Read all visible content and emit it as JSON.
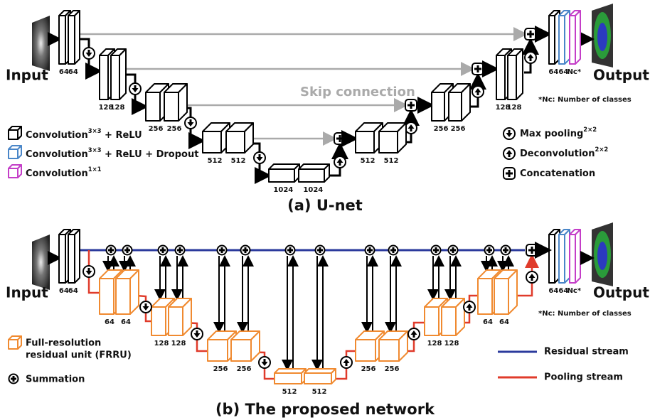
{
  "unet": {
    "input": "Input",
    "output": "Output",
    "channels": [
      "64",
      "64",
      "128",
      "128",
      "256",
      "256",
      "512",
      "512",
      "1024",
      "1024",
      "512",
      "512",
      "256",
      "256",
      "128",
      "128",
      "64",
      "64",
      "Nc*"
    ],
    "skip_label": "Skip connection",
    "note": "*Nc: Number of classes",
    "legend": [
      {
        "text": "Convolution",
        "sup": "3×3",
        "suffix": " + ReLU"
      },
      {
        "text": "Convolution",
        "sup": "3×3",
        "suffix": " + ReLU + Dropout"
      },
      {
        "text": "Convolution",
        "sup": "1×1"
      }
    ],
    "ops": [
      {
        "text": "Max pooling",
        "sup": "2×2"
      },
      {
        "text": "Deconvolution",
        "sup": "2×2"
      },
      {
        "text": "Concatenation"
      }
    ],
    "caption": "(a) U-net"
  },
  "proposed": {
    "input": "Input",
    "output": "Output",
    "channels": [
      "64",
      "64",
      "64",
      "64",
      "128",
      "128",
      "256",
      "256",
      "512",
      "512",
      "256",
      "256",
      "128",
      "128",
      "64",
      "64",
      "64",
      "64",
      "Nc*"
    ],
    "note": "*Nc: Number of classes",
    "legend_frru": [
      "Full-resolution",
      "residual unit (FRRU)"
    ],
    "legend_sum": "Summation",
    "streams": [
      {
        "name": "Residual stream",
        "color": "#2b3a9c"
      },
      {
        "name": "Pooling stream",
        "color": "#e03b2b"
      }
    ],
    "caption": "(b) The proposed network"
  }
}
